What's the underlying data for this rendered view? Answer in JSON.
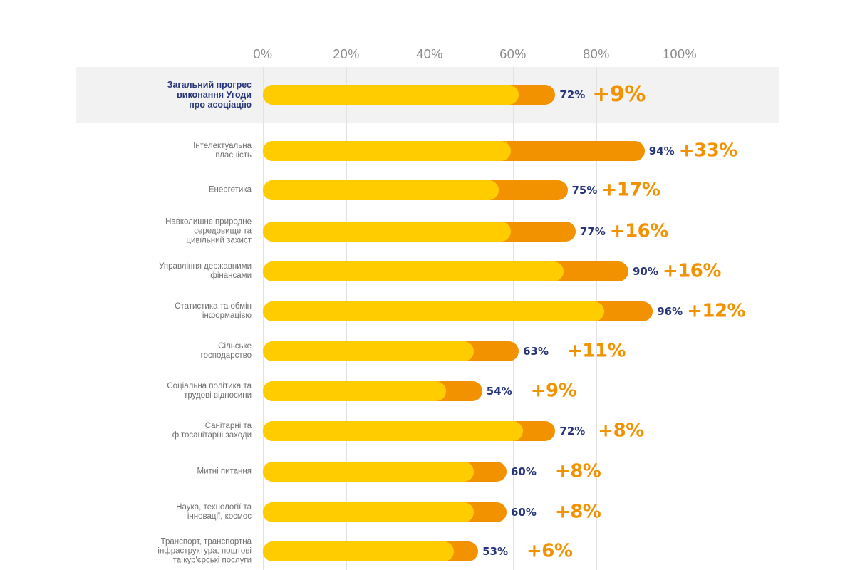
{
  "chart_data": {
    "type": "bar",
    "orientation": "horizontal",
    "title": "",
    "xlabel": "",
    "ylabel": "",
    "xlim": [
      0,
      100
    ],
    "x_tick_labels": [
      "0%",
      "20%",
      "40%",
      "60%",
      "80%",
      "100%"
    ],
    "x_ticks": [
      0,
      20,
      40,
      60,
      80,
      100
    ],
    "grid": true,
    "colors": {
      "base": "#ffcc00",
      "increase": "#f39200",
      "value_label": "#27357a",
      "delta_label": "#f39200",
      "highlight_panel": "#f2f2f2",
      "category_label": "#6e6e6e"
    },
    "series": [
      {
        "name": "Previous progress",
        "color": "#ffcc00"
      },
      {
        "name": "Increase",
        "color": "#f39200"
      }
    ],
    "total": {
      "category": "Загальний прогрес\nвиконання Угоди\nпро асоціацію",
      "value": 72,
      "increase": 9,
      "value_label": "72%",
      "increase_label": "+9%"
    },
    "categories": [
      "Інтелектуальна\nвласність",
      "Енергетика",
      "Навколишнє природне\nсередовище та\nцивільний захист",
      "Управління державними\nфінансами",
      "Статистика та обмін\nінформацією",
      "Сільське\nгосподарство",
      "Соціальна політика та\nтрудові відносини",
      "Санітарні та\nфітосанітарні заходи",
      "Митні питання",
      "Наука, технології та\nінновації, космос",
      "Транспорт, транспортна\nінфраструктура, поштові\nта кур'єрські послуги"
    ],
    "values": [
      94,
      75,
      77,
      90,
      96,
      63,
      54,
      72,
      60,
      60,
      53
    ],
    "increases": [
      33,
      17,
      16,
      16,
      12,
      11,
      9,
      8,
      8,
      8,
      6
    ],
    "value_labels": [
      "94%",
      "75%",
      "77%",
      "90%",
      "96%",
      "63%",
      "54%",
      "72%",
      "60%",
      "60%",
      "53%"
    ],
    "increase_labels": [
      "+33%",
      "+17%",
      "+16%",
      "+16%",
      "+12%",
      "+11%",
      "+9%",
      "+8%",
      "+8%",
      "+8%",
      "+6%"
    ]
  }
}
